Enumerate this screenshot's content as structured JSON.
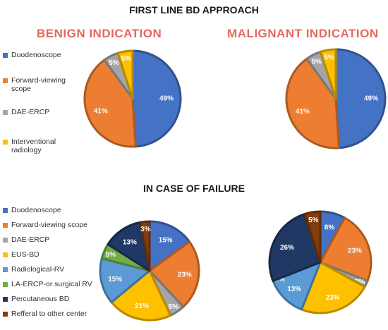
{
  "titles": {
    "top": "FIRST LINE BD APPROACH",
    "bottom": "IN CASE OF FAILURE"
  },
  "colors": {
    "duodenoscope": "#4472c4",
    "forward": "#ed7d31",
    "dae": "#a5a5a5",
    "interventional": "#ffc000",
    "eus": "#ffc000",
    "radiological": "#5b9bd5",
    "la": "#70ad47",
    "percutaneous": "#203864",
    "refferal": "#843c0c"
  },
  "chart_data": [
    {
      "type": "pie",
      "title": "BENIGN INDICATION",
      "labels": [
        "Duodenoscope",
        "Forward-viewing scope",
        "DAE-ERCP",
        "Interventional radiology"
      ],
      "values": [
        49,
        41,
        5,
        5
      ],
      "value_labels": [
        "49%",
        "41%",
        "5%",
        "5%"
      ],
      "legend": [
        "Duodenoscope",
        "Forward-viewing scope",
        "DAE-ERCP",
        "Interventional radiology"
      ],
      "legend_position": "left"
    },
    {
      "type": "pie",
      "title": "MALIGNANT INDICATION",
      "labels": [
        "Duodenoscope",
        "Forward-viewing scope",
        "DAE-ERCP",
        "Interventional radiology"
      ],
      "values": [
        49,
        41,
        5,
        5
      ],
      "value_labels": [
        "49%",
        "41%",
        "5%",
        "5%"
      ]
    },
    {
      "type": "pie",
      "title": "",
      "labels": [
        "Duodenoscope",
        "Forward-viewing scope",
        "DAE-ERCP",
        "EUS-BD",
        "Radiological-RV",
        "LA-ERCP-or surgical RV",
        "Percutaneous BD",
        "Refferal to other center"
      ],
      "values": [
        15,
        23,
        5,
        21,
        15,
        5,
        13,
        3
      ],
      "value_labels": [
        "15%",
        "23%",
        "5%",
        "21%",
        "15%",
        "5%",
        "13%",
        "3%"
      ],
      "legend": [
        "Duodenoscope",
        "Forward-viewing scope",
        "DAE-ERCP",
        "EUS-BD",
        "Radiological-RV",
        "LA-ERCP-or surgical RV",
        "Percutaneous BD",
        "Refferal to other center"
      ],
      "legend_position": "left"
    },
    {
      "type": "pie",
      "title": "",
      "labels": [
        "Duodenoscope",
        "Forward-viewing scope",
        "DAE-ERCP",
        "EUS-BD",
        "Radiological-RV",
        "LA-ERCP-or surgical RV",
        "Percutaneous BD",
        "Refferal to other center"
      ],
      "values": [
        8,
        23,
        2,
        23,
        13,
        0,
        26,
        5
      ],
      "value_labels": [
        "8%",
        "23%",
        "2%",
        "23%",
        "13%",
        "0%",
        "26%",
        "5%"
      ]
    }
  ]
}
